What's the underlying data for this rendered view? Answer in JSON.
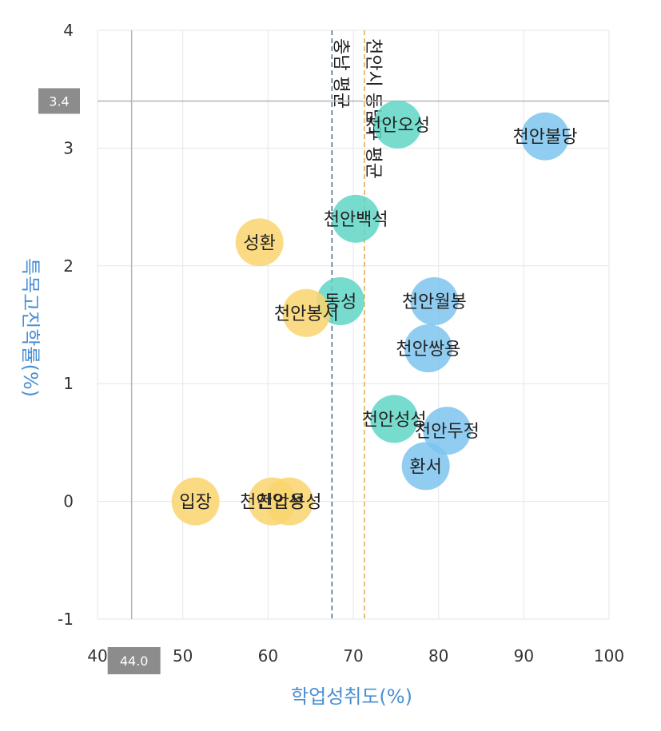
{
  "chart_data": {
    "type": "scatter",
    "xlabel": "학업성취도(%)",
    "ylabel": "특목고진학률(%)",
    "xlim": [
      40,
      100
    ],
    "ylim": [
      -1,
      4
    ],
    "xticks": [
      "40",
      "50",
      "60",
      "70",
      "80",
      "90",
      "100"
    ],
    "yticks": [
      "-1",
      "0",
      "1",
      "2",
      "3",
      "4"
    ],
    "grid": true,
    "marker_lines": {
      "x": {
        "value": 44.0,
        "label": "44.0"
      },
      "y": {
        "value": 3.4,
        "label": "3.4"
      }
    },
    "reference_lines": [
      {
        "label": "충남 평균",
        "x": 67.5,
        "color": "#3d6b8f"
      },
      {
        "label": "천안시 동남구 평균",
        "x": 71.3,
        "color": "#e3a64a"
      }
    ],
    "colors": {
      "yellow": "#f9d56e",
      "teal": "#5fd6c6",
      "blue": "#7cc4ef"
    },
    "points": [
      {
        "label": "천안불당",
        "x": 92.5,
        "y": 3.1,
        "color": "blue"
      },
      {
        "label": "천안오성",
        "x": 75.2,
        "y": 3.2,
        "color": "teal"
      },
      {
        "label": "천안백석",
        "x": 70.3,
        "y": 2.4,
        "color": "teal"
      },
      {
        "label": "성환",
        "x": 59.0,
        "y": 2.2,
        "color": "yellow"
      },
      {
        "label": "동성",
        "x": 68.5,
        "y": 1.7,
        "color": "teal"
      },
      {
        "label": "천안봉서",
        "x": 64.5,
        "y": 1.6,
        "color": "yellow"
      },
      {
        "label": "천안월봉",
        "x": 79.5,
        "y": 1.7,
        "color": "blue"
      },
      {
        "label": "천안쌍용",
        "x": 78.8,
        "y": 1.3,
        "color": "blue"
      },
      {
        "label": "천안성성",
        "x": 74.8,
        "y": 0.7,
        "color": "teal"
      },
      {
        "label": "천안두정",
        "x": 81.0,
        "y": 0.6,
        "color": "blue"
      },
      {
        "label": "환서",
        "x": 78.5,
        "y": 0.3,
        "color": "blue"
      },
      {
        "label": "입장",
        "x": 51.5,
        "y": 0.0,
        "color": "yellow"
      },
      {
        "label": "천안업성",
        "x": 60.5,
        "y": 0.0,
        "color": "yellow"
      },
      {
        "label": "천안용성",
        "x": 62.5,
        "y": 0.0,
        "color": "yellow"
      }
    ]
  }
}
